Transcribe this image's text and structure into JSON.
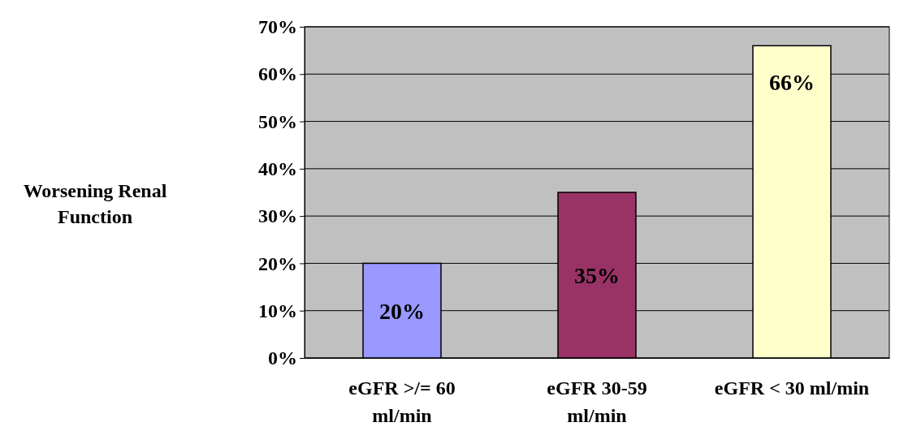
{
  "chart_data": {
    "type": "bar",
    "ylabel": "Worsening Renal Function",
    "categories": [
      "eGFR >/= 60 ml/min",
      "eGFR 30-59 ml/min",
      "eGFR < 30 ml/min"
    ],
    "values": [
      20,
      35,
      66
    ],
    "colors": [
      "#9999ff",
      "#993366",
      "#ffffcc"
    ],
    "value_labels": [
      "20%",
      "35%",
      "66%"
    ],
    "ylim": [
      0,
      70
    ],
    "yticks": [
      {
        "value": 0,
        "label": "0%"
      },
      {
        "value": 10,
        "label": "10%"
      },
      {
        "value": 20,
        "label": "20%"
      },
      {
        "value": 30,
        "label": "30%"
      },
      {
        "value": 40,
        "label": "40%"
      },
      {
        "value": 50,
        "label": "50%"
      },
      {
        "value": 60,
        "label": "60%"
      },
      {
        "value": 70,
        "label": "70%"
      }
    ],
    "grid": "y"
  }
}
